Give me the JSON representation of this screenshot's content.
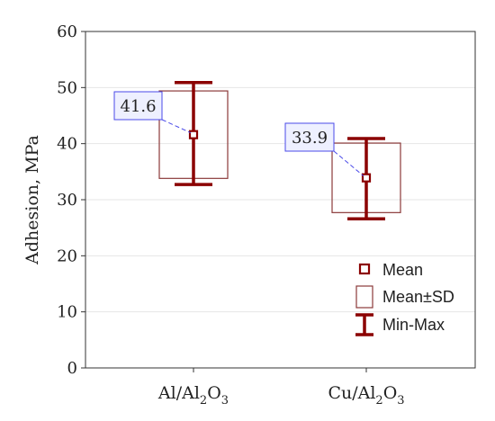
{
  "chart_data": {
    "type": "box",
    "ylabel": "Adhesion, MPa",
    "ylim": [
      0,
      60
    ],
    "yticks": [
      0,
      10,
      20,
      30,
      40,
      50,
      60
    ],
    "grid": "horizontal",
    "categories": [
      {
        "base": "Al/Al",
        "sub": "2",
        "tail": "O",
        "sub2": "3"
      },
      {
        "base": "Cu/Al",
        "sub": "2",
        "tail": "O",
        "sub2": "3"
      }
    ],
    "series": [
      {
        "mean": 41.6,
        "sd_low": 33.8,
        "sd_high": 49.4,
        "min": 32.7,
        "max": 50.9,
        "label": "41.6"
      },
      {
        "mean": 33.9,
        "sd_low": 27.7,
        "sd_high": 40.1,
        "min": 26.6,
        "max": 40.9,
        "label": "33.9"
      }
    ],
    "legend": {
      "position": "bottom-right",
      "items": [
        "Mean",
        "Mean±SD",
        "Min-Max"
      ]
    },
    "colors": {
      "whisker": "#8b0000",
      "box": "#8b3a3a",
      "annotation_border": "#4a4ae8",
      "annotation_fill": "#eef0ff",
      "grid": "#e6e6e6"
    }
  }
}
